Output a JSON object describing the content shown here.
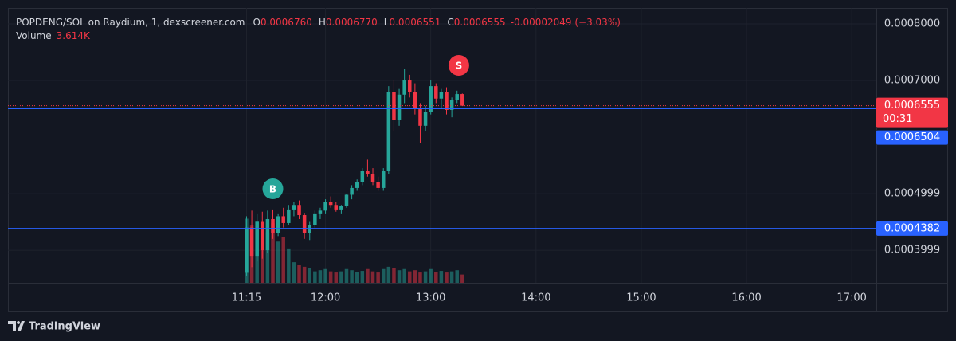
{
  "chart_data": {
    "type": "candlestick",
    "legend": {
      "title": "POPDENG/SOL on Raydium, 1, dexscreener.com",
      "fields": [
        {
          "label": "O",
          "value": "0.0006760"
        },
        {
          "label": "H",
          "value": "0.0006770"
        },
        {
          "label": "L",
          "value": "0.0006551"
        },
        {
          "label": "C",
          "value": "0.0006555"
        }
      ],
      "change": "-0.00002049 (−3.03%)",
      "volume_label": "Volume",
      "volume_value": "3.614K"
    },
    "x": [
      "11:15",
      "11:18",
      "11:21",
      "11:24",
      "11:27",
      "11:30",
      "11:33",
      "11:36",
      "11:39",
      "11:42",
      "11:45",
      "11:48",
      "11:51",
      "11:54",
      "11:57",
      "12:00",
      "12:03",
      "12:06",
      "12:09",
      "12:12",
      "12:15",
      "12:18",
      "12:21",
      "12:24",
      "12:27",
      "12:30",
      "12:33",
      "12:36",
      "12:39",
      "12:42",
      "12:45",
      "12:48",
      "12:51",
      "12:54",
      "12:57",
      "13:00",
      "13:03",
      "13:06",
      "13:09",
      "13:12",
      "13:15",
      "13:18"
    ],
    "open": [
      0.00036,
      0.00044,
      0.00039,
      0.00045,
      0.0004,
      0.000455,
      0.00043,
      0.00046,
      0.000448,
      0.000472,
      0.00048,
      0.000462,
      0.00043,
      0.000445,
      0.000465,
      0.00047,
      0.000485,
      0.00048,
      0.000472,
      0.000478,
      0.000498,
      0.00051,
      0.00052,
      0.00054,
      0.000535,
      0.00052,
      0.00051,
      0.00054,
      0.00068,
      0.00063,
      0.000675,
      0.0007,
      0.00068,
      0.00065,
      0.00062,
      0.000645,
      0.00069,
      0.000668,
      0.00068,
      0.000648,
      0.000665,
      0.000676
    ],
    "high": [
      0.00046,
      0.00047,
      0.000465,
      0.000468,
      0.00047,
      0.000472,
      0.000465,
      0.000475,
      0.00048,
      0.000485,
      0.000488,
      0.000466,
      0.00045,
      0.00047,
      0.000475,
      0.00049,
      0.000495,
      0.000485,
      0.00048,
      0.0005,
      0.000515,
      0.000525,
      0.000545,
      0.00056,
      0.000545,
      0.00053,
      0.000545,
      0.00069,
      0.0007,
      0.000685,
      0.00072,
      0.00071,
      0.000695,
      0.00066,
      0.000655,
      0.0007,
      0.000695,
      0.000685,
      0.000688,
      0.00067,
      0.000682,
      0.000677
    ],
    "low": [
      0.000355,
      0.00037,
      0.00038,
      0.000385,
      0.000395,
      0.00042,
      0.000425,
      0.00044,
      0.000445,
      0.00046,
      0.000455,
      0.00042,
      0.000418,
      0.00044,
      0.000455,
      0.000465,
      0.000475,
      0.000468,
      0.000465,
      0.000475,
      0.00049,
      0.000505,
      0.000515,
      0.00053,
      0.000515,
      0.000505,
      0.000505,
      0.000535,
      0.00061,
      0.00062,
      0.00066,
      0.00067,
      0.00064,
      0.00059,
      0.00061,
      0.00064,
      0.00066,
      0.00065,
      0.00064,
      0.000635,
      0.00066,
      0.0006551
    ],
    "close": [
      0.00044,
      0.00039,
      0.00045,
      0.0004,
      0.000455,
      0.00043,
      0.00046,
      0.000448,
      0.000472,
      0.00048,
      0.000462,
      0.00043,
      0.000445,
      0.000465,
      0.00047,
      0.000485,
      0.00048,
      0.000472,
      0.000478,
      0.000498,
      0.00051,
      0.00052,
      0.00054,
      0.000535,
      0.00052,
      0.00051,
      0.00054,
      0.00068,
      0.00063,
      0.000675,
      0.0007,
      0.00068,
      0.00065,
      0.00062,
      0.000645,
      0.00069,
      0.000668,
      0.00068,
      0.000648,
      0.000665,
      0.000676,
      0.0006555
    ],
    "volume": [
      28000,
      25000,
      27000,
      24000,
      22000,
      26000,
      18000,
      20000,
      15000,
      9000,
      8000,
      7000,
      6500,
      5000,
      5500,
      6000,
      5000,
      4500,
      5000,
      6000,
      5500,
      4800,
      5200,
      6000,
      5000,
      4500,
      6000,
      7000,
      6500,
      5500,
      6000,
      5000,
      5500,
      4500,
      5000,
      6000,
      4800,
      5200,
      4500,
      5000,
      5500,
      3614
    ],
    "up_color": "#26a69a",
    "down_color": "#f23645",
    "xlim": [
      "08:59",
      "17:14"
    ],
    "xticks": [
      "11:15",
      "12:00",
      "13:00",
      "14:00",
      "15:00",
      "16:00",
      "17:00"
    ],
    "ylim": [
      0.0003423,
      0.0008282
    ],
    "yticks": [
      {
        "value": 0.0008,
        "label": "0.0008000"
      },
      {
        "value": 0.0007,
        "label": "0.0007000"
      },
      0.0004999,
      0.0003999
    ],
    "vlim": [
      0,
      120000
    ],
    "grid": true,
    "last_price": {
      "value": 0.0006555,
      "countdown": "00:31",
      "color": "#f23645"
    },
    "price_lines": [
      {
        "value": 0.0006504,
        "color": "#2962ff"
      },
      {
        "value": 0.0004382,
        "color": "#2962ff"
      }
    ],
    "markers": [
      {
        "text": "B",
        "x": "11:30",
        "color": "#26a69a"
      },
      {
        "text": "S",
        "x": "13:16",
        "color": "#f23645"
      }
    ],
    "footer": "TradingView"
  }
}
